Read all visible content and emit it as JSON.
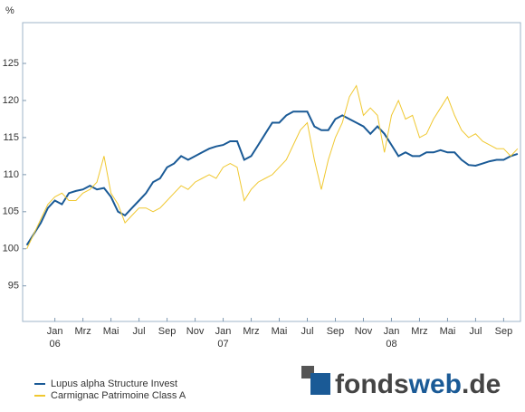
{
  "chart_data": {
    "type": "line",
    "y_unit": "%",
    "xlim": [
      -1.8,
      33.7
    ],
    "ylim": [
      90.2,
      130.5
    ],
    "yticks": [
      95,
      100,
      105,
      110,
      115,
      120,
      125
    ],
    "xticks": [
      {
        "value": 0.5,
        "label": "Jan"
      },
      {
        "value": 2.5,
        "label": "Mrz"
      },
      {
        "value": 4.5,
        "label": "Mai"
      },
      {
        "value": 6.5,
        "label": "Jul"
      },
      {
        "value": 8.5,
        "label": "Sep"
      },
      {
        "value": 10.5,
        "label": "Nov"
      },
      {
        "value": 12.5,
        "label": "Jan"
      },
      {
        "value": 14.5,
        "label": "Mrz"
      },
      {
        "value": 16.5,
        "label": "Mai"
      },
      {
        "value": 18.5,
        "label": "Jul"
      },
      {
        "value": 20.5,
        "label": "Sep"
      },
      {
        "value": 22.5,
        "label": "Nov"
      },
      {
        "value": 24.5,
        "label": "Jan"
      },
      {
        "value": 26.5,
        "label": "Mrz"
      },
      {
        "value": 28.5,
        "label": "Mai"
      },
      {
        "value": 30.5,
        "label": "Jul"
      },
      {
        "value": 32.5,
        "label": "Sep"
      }
    ],
    "year_labels": [
      {
        "value": 0.5,
        "label": "06"
      },
      {
        "value": 12.5,
        "label": "07"
      },
      {
        "value": 24.5,
        "label": "08"
      }
    ],
    "x": [
      -1.5,
      -1,
      -0.5,
      0,
      0.5,
      1,
      1.5,
      2,
      2.5,
      3,
      3.5,
      4,
      4.5,
      5,
      5.5,
      6,
      6.5,
      7,
      7.5,
      8,
      8.5,
      9,
      9.5,
      10,
      10.5,
      11,
      11.5,
      12,
      12.5,
      13,
      13.5,
      14,
      14.5,
      15,
      15.5,
      16,
      16.5,
      17,
      17.5,
      18,
      18.5,
      19,
      19.5,
      20,
      20.5,
      21,
      21.5,
      22,
      22.5,
      23,
      23.5,
      24,
      24.5,
      25,
      25.5,
      26,
      26.5,
      27,
      27.5,
      28,
      28.5,
      29,
      29.5,
      30,
      30.5,
      31,
      31.5,
      32,
      32.5,
      33,
      33.5
    ],
    "series": [
      {
        "name": "Lupus alpha Structure Invest",
        "color": "#1a5a96",
        "values": [
          100.5,
          102,
          103.5,
          105.5,
          106.5,
          106,
          107.5,
          107.8,
          108,
          108.5,
          108,
          108.2,
          107,
          105,
          104.5,
          105.5,
          106.5,
          107.5,
          109,
          109.5,
          111,
          111.5,
          112.5,
          112,
          112.5,
          113,
          113.5,
          113.8,
          114,
          114.5,
          114.5,
          112,
          112.5,
          114,
          115.5,
          117,
          117,
          118,
          118.5,
          118.5,
          118.5,
          116.5,
          116,
          116,
          117.5,
          118,
          117.5,
          117,
          116.5,
          115.5,
          116.5,
          115.5,
          114,
          112.5,
          113,
          112.5,
          112.5,
          113,
          113,
          113.3,
          113,
          113,
          112,
          111.3,
          111.2,
          111.5,
          111.8,
          112,
          112,
          112.5,
          112.8
        ]
      },
      {
        "name": "Carmignac Patrimoine Class A",
        "color": "#f0c830",
        "values": [
          100,
          102,
          104,
          106,
          107,
          107.5,
          106.5,
          106.5,
          107.5,
          108,
          109,
          112.5,
          107.5,
          106,
          103.5,
          104.5,
          105.5,
          105.5,
          105,
          105.5,
          106.5,
          107.5,
          108.5,
          108,
          109,
          109.5,
          110,
          109.5,
          111,
          111.5,
          111,
          106.5,
          108,
          109,
          109.5,
          110,
          111,
          112,
          114,
          116,
          117,
          112,
          108,
          112,
          115,
          117,
          120.5,
          122,
          118,
          119,
          118,
          113,
          118,
          120,
          117.5,
          118,
          115,
          115.5,
          117.5,
          119,
          120.5,
          118,
          116,
          115,
          115.5,
          114.5,
          114,
          113.5,
          113.5,
          112.5,
          113.5
        ]
      }
    ],
    "logo": [
      "fonds",
      "web",
      ".de"
    ]
  }
}
